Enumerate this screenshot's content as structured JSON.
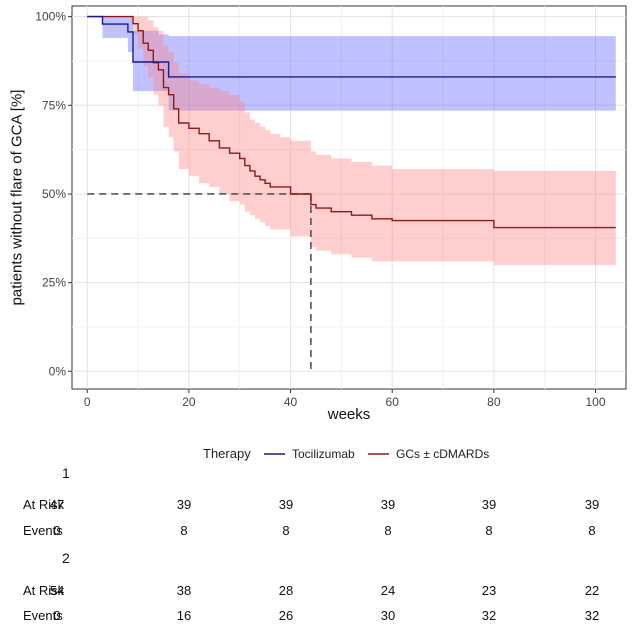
{
  "chart_data": {
    "type": "line",
    "subtype": "kaplan-meier",
    "xlabel": "weeks",
    "ylabel": "patients without flare of GCA [%]",
    "xlim": [
      -3,
      106
    ],
    "ylim": [
      -0.05,
      1.03
    ],
    "x_ticks": [
      0,
      20,
      40,
      60,
      80,
      100
    ],
    "y_ticks": [
      0,
      0.25,
      0.5,
      0.75,
      1.0
    ],
    "y_tick_labels": [
      "0%",
      "25%",
      "50%",
      "75%",
      "100%"
    ],
    "grid": true,
    "legend": {
      "title": "Therapy",
      "placement": "bottom",
      "entries": [
        "Tocilizumab",
        "GCs ± cDMARDs"
      ]
    },
    "series": [
      {
        "name": "Tocilizumab",
        "color": "#1a1a8c",
        "band_color": "#5c5cff",
        "x": [
          0,
          3,
          3,
          8,
          9,
          12,
          14,
          16,
          18,
          104
        ],
        "y": [
          1.0,
          1.0,
          0.979,
          0.957,
          0.872,
          0.872,
          0.872,
          0.83,
          0.83,
          0.83
        ],
        "lower": [
          1.0,
          1.0,
          0.94,
          0.9,
          0.79,
          0.79,
          0.79,
          0.735,
          0.735,
          0.735
        ],
        "upper": [
          1.0,
          1.0,
          1.0,
          1.0,
          0.96,
          0.96,
          0.95,
          0.945,
          0.945,
          0.945
        ]
      },
      {
        "name": "GCs ± cDMARDs",
        "color": "#8b1a1a",
        "band_color": "#ff8080",
        "x": [
          0,
          8,
          9,
          10,
          11,
          12,
          13,
          14,
          15,
          16,
          17,
          18,
          20,
          22,
          24,
          26,
          28,
          30,
          31,
          32,
          33,
          34,
          35,
          36,
          38,
          40,
          42,
          44,
          45,
          48,
          52,
          56,
          60,
          80,
          104
        ],
        "y": [
          1.0,
          1.0,
          0.98,
          0.96,
          0.925,
          0.905,
          0.87,
          0.85,
          0.8,
          0.78,
          0.74,
          0.7,
          0.685,
          0.67,
          0.65,
          0.63,
          0.615,
          0.6,
          0.58,
          0.565,
          0.55,
          0.54,
          0.53,
          0.52,
          0.52,
          0.5,
          0.5,
          0.47,
          0.46,
          0.45,
          0.44,
          0.43,
          0.425,
          0.405,
          0.405
        ],
        "lower": [
          1.0,
          1.0,
          0.95,
          0.91,
          0.86,
          0.83,
          0.78,
          0.75,
          0.69,
          0.66,
          0.62,
          0.57,
          0.55,
          0.53,
          0.52,
          0.5,
          0.48,
          0.47,
          0.45,
          0.44,
          0.43,
          0.42,
          0.41,
          0.4,
          0.4,
          0.38,
          0.38,
          0.35,
          0.34,
          0.33,
          0.32,
          0.31,
          0.31,
          0.3,
          0.3
        ],
        "upper": [
          1.0,
          1.0,
          1.0,
          1.0,
          1.0,
          0.99,
          0.97,
          0.96,
          0.92,
          0.9,
          0.87,
          0.84,
          0.82,
          0.81,
          0.8,
          0.79,
          0.78,
          0.76,
          0.73,
          0.71,
          0.7,
          0.69,
          0.68,
          0.67,
          0.66,
          0.65,
          0.65,
          0.62,
          0.61,
          0.6,
          0.59,
          0.58,
          0.57,
          0.565,
          0.565
        ]
      }
    ],
    "annotations": {
      "median_reference_y": 0.5,
      "median_reference_x": 44
    }
  },
  "risk_table": {
    "row_labels": {
      "at_risk": "At Risk",
      "events": "Events"
    },
    "groups": [
      {
        "name": "1",
        "at_risk": [
          "47",
          "39",
          "39",
          "39",
          "39",
          "39"
        ],
        "events": [
          "0",
          "8",
          "8",
          "8",
          "8",
          "8"
        ]
      },
      {
        "name": "2",
        "at_risk": [
          "54",
          "38",
          "28",
          "24",
          "23",
          "22"
        ],
        "events": [
          "0",
          "16",
          "26",
          "30",
          "32",
          "32"
        ]
      }
    ]
  }
}
